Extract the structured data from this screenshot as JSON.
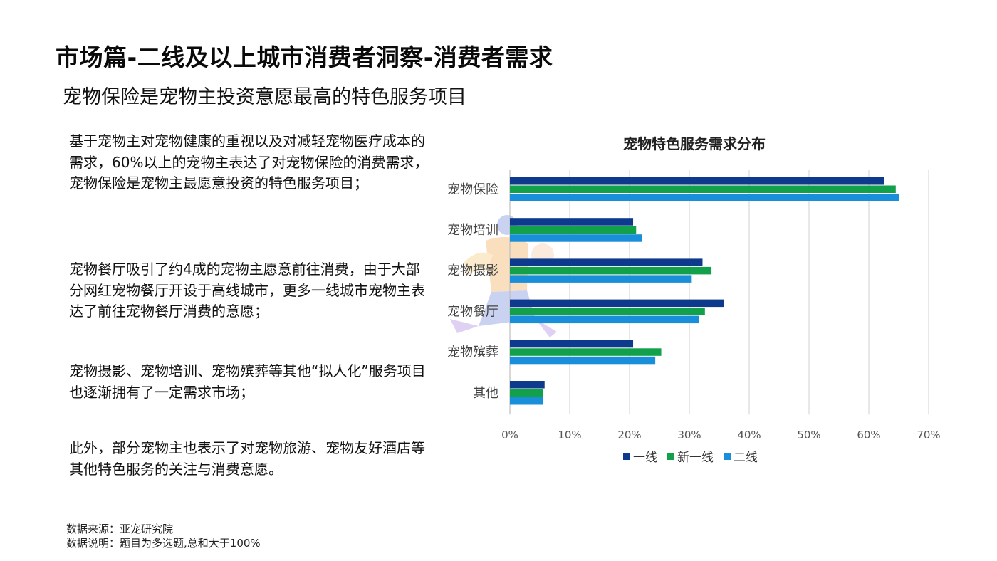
{
  "page": {
    "title": "市场篇-二线及以上城市消费者洞察-消费者需求",
    "subtitle": "宠物保险是宠物主投资意愿最高的特色服务项目"
  },
  "paragraphs": [
    "基于宠物主对宠物健康的重视以及对减轻宠物医疗成本的需求，60%以上的宠物主表达了对宠物保险的消费需求，宠物保险是宠物主最愿意投资的特色服务项目；",
    "宠物餐厅吸引了约4成的宠物主愿意前往消费，由于大部分网红宠物餐厅开设于高线城市，更多一线城市宠物主表达了前往宠物餐厅消费的意愿；",
    "宠物摄影、宠物培训、宠物殡葬等其他“拟人化”服务项目也逐渐拥有了一定需求市场；",
    "此外，部分宠物主也表示了对宠物旅游、宠物友好酒店等其他特色服务的关注与消费意愿。"
  ],
  "footnotes": {
    "source": "数据来源：亚宠研究院",
    "note": "数据说明：题目为多选题,总和大于100%"
  },
  "chart_data": {
    "type": "bar",
    "orientation": "horizontal",
    "title": "宠物特色服务需求分布",
    "categories": [
      "宠物保险",
      "宠物培训",
      "宠物摄影",
      "宠物餐厅",
      "宠物殡葬",
      "其他"
    ],
    "series": [
      {
        "name": "一线",
        "color": "#0d3a8c",
        "values": [
          62.6,
          20.6,
          32.2,
          35.8,
          20.6,
          5.8
        ]
      },
      {
        "name": "新一线",
        "color": "#12a14a",
        "values": [
          64.5,
          21.1,
          33.7,
          32.6,
          25.3,
          5.6
        ]
      },
      {
        "name": "二线",
        "color": "#1a8fd9",
        "values": [
          65.0,
          22.1,
          30.4,
          31.6,
          24.3,
          5.6
        ]
      }
    ],
    "xlim": [
      0,
      70
    ],
    "xticks": [
      "0%",
      "10%",
      "20%",
      "30%",
      "40%",
      "50%",
      "60%",
      "70%"
    ],
    "grid": true,
    "legend_position": "bottom"
  }
}
